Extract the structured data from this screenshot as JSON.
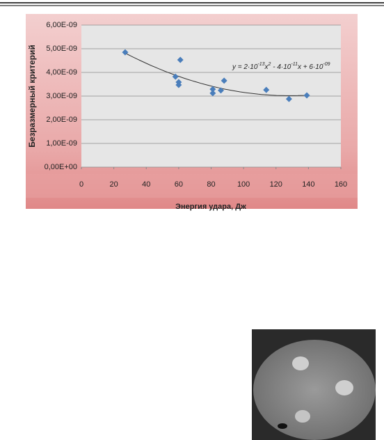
{
  "chart_data": {
    "type": "scatter",
    "x_label": "Энергия удара, Дж",
    "y_label": "Безразмерный критерий",
    "x": [
      27,
      58,
      60,
      60,
      61,
      81,
      81,
      86,
      88,
      114,
      128,
      139
    ],
    "series": [
      {
        "color": "#4a7ebb",
        "values": [
          4.85e-09,
          3.82e-09,
          3.59e-09,
          3.47e-09,
          4.53e-09,
          3.29e-09,
          3.12e-09,
          3.24e-09,
          3.65e-09,
          3.26e-09,
          2.88e-09,
          3.03e-09
        ]
      }
    ],
    "xlim": [
      0,
      160
    ],
    "xticks": [
      0,
      20,
      40,
      60,
      80,
      100,
      120,
      140,
      160
    ],
    "ylim": [
      0,
      6e-09
    ],
    "yticks": [
      {
        "value": 0,
        "label": "0,00E+00"
      },
      {
        "value": 1e-09,
        "label": "1,00E-09"
      },
      {
        "value": 2e-09,
        "label": "2,00E-09"
      },
      {
        "value": 3e-09,
        "label": "3,00E-09"
      },
      {
        "value": 4e-09,
        "label": "4,00E-09"
      },
      {
        "value": 5e-09,
        "label": "5,00E-09"
      },
      {
        "value": 6e-09,
        "label": "6,00E-09"
      }
    ],
    "grid": true,
    "trendline": "polynomial",
    "trendline_equation": [
      "y = 2·10",
      "-13",
      "x",
      "2",
      " - 4·10",
      "-11",
      "x + 6·10",
      "-09"
    ]
  }
}
